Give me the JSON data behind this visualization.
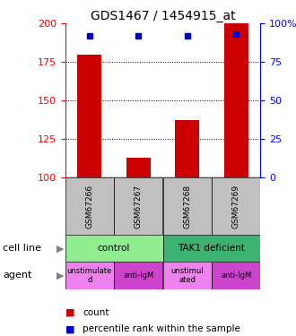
{
  "title": "GDS1467 / 1454915_at",
  "samples": [
    "GSM67266",
    "GSM67267",
    "GSM67268",
    "GSM67269"
  ],
  "counts": [
    180,
    113,
    137,
    200
  ],
  "percentiles": [
    92,
    92,
    92,
    93
  ],
  "ylim_left": [
    100,
    200
  ],
  "ylim_right": [
    0,
    100
  ],
  "yticks_left": [
    100,
    125,
    150,
    175,
    200
  ],
  "yticks_right": [
    0,
    25,
    50,
    75,
    100
  ],
  "ytick_right_labels": [
    "0",
    "25",
    "50",
    "75",
    "100%"
  ],
  "cell_line_data": [
    [
      "control",
      0,
      2,
      "#90ee90"
    ],
    [
      "TAK1 deficient",
      2,
      4,
      "#3cb371"
    ]
  ],
  "agent_labels": [
    "unstimulate\nd",
    "anti-IgM",
    "unstimul\nated",
    "anti-IgM"
  ],
  "agent_colors": [
    "#ee82ee",
    "#cc44cc",
    "#ee82ee",
    "#cc44cc"
  ],
  "bar_color": "#cc0000",
  "percentile_color": "#0000cc",
  "sample_bg": "#c0c0c0",
  "gridline_vals": [
    125,
    150,
    175
  ],
  "bar_width": 0.5
}
